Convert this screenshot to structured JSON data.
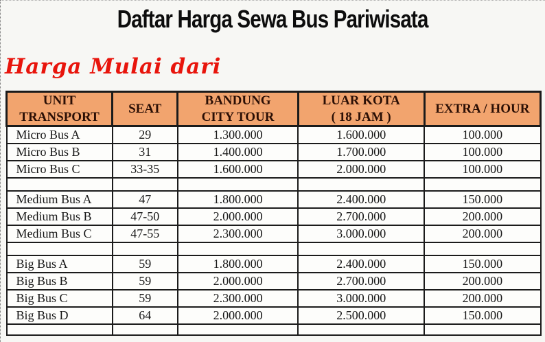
{
  "header": {
    "title": "Daftar Harga Sewa Bus Pariwisata",
    "subtitle": "Harga Mulai dari"
  },
  "colors": {
    "header_bg": "#F2A46E",
    "header_text": "#2B0F05",
    "subtitle_text": "#E8150C",
    "grid_border": "#1B1B1B"
  },
  "table": {
    "columns": [
      {
        "id": "unit-transport",
        "label": "UNIT\nTRANSPORT",
        "width": "19.8%"
      },
      {
        "id": "seat",
        "label": "SEAT",
        "width": "12.1%"
      },
      {
        "id": "bandung-city-tour",
        "label": "BANDUNG\nCITY TOUR",
        "width": "22.6%"
      },
      {
        "id": "luar-kota-18-jam",
        "label": "LUAR KOTA\n( 18 JAM )",
        "width": "23.7%"
      },
      {
        "id": "extra-hour",
        "label": "EXTRA / HOUR",
        "width": "21.8%"
      }
    ],
    "rows": [
      {
        "type": "data",
        "cells": [
          "Micro Bus A",
          "29",
          "1.300.000",
          "1.600.000",
          "100.000"
        ]
      },
      {
        "type": "data",
        "cells": [
          "Micro Bus B",
          "31",
          "1.400.000",
          "1.700.000",
          "100.000"
        ]
      },
      {
        "type": "data",
        "cells": [
          "Micro Bus C",
          "33-35",
          "1.600.000",
          "2.000.000",
          "100.000"
        ]
      },
      {
        "type": "spacer"
      },
      {
        "type": "data",
        "cells": [
          "Medium Bus A",
          "47",
          "1.800.000",
          "2.400.000",
          "150.000"
        ]
      },
      {
        "type": "data",
        "cells": [
          "Medium Bus B",
          "47-50",
          "2.000.000",
          "2.700.000",
          "200.000"
        ]
      },
      {
        "type": "data",
        "cells": [
          "Medium Bus C",
          "47-55",
          "2.300.000",
          "3.000.000",
          "200.000"
        ]
      },
      {
        "type": "spacer"
      },
      {
        "type": "data",
        "cells": [
          "Big Bus A",
          "59",
          "1.800.000",
          "2.400.000",
          "150.000"
        ]
      },
      {
        "type": "data",
        "cells": [
          "Big Bus B",
          "59",
          "2.000.000",
          "2.700.000",
          "200.000"
        ]
      },
      {
        "type": "data",
        "cells": [
          "Big Bus C",
          "59",
          "2.300.000",
          "3.000.000",
          "200.000"
        ]
      },
      {
        "type": "data",
        "cells": [
          "Big Bus D",
          "64",
          "2.000.000",
          "2.500.000",
          "150.000"
        ]
      },
      {
        "type": "spacer-bottom"
      }
    ]
  }
}
